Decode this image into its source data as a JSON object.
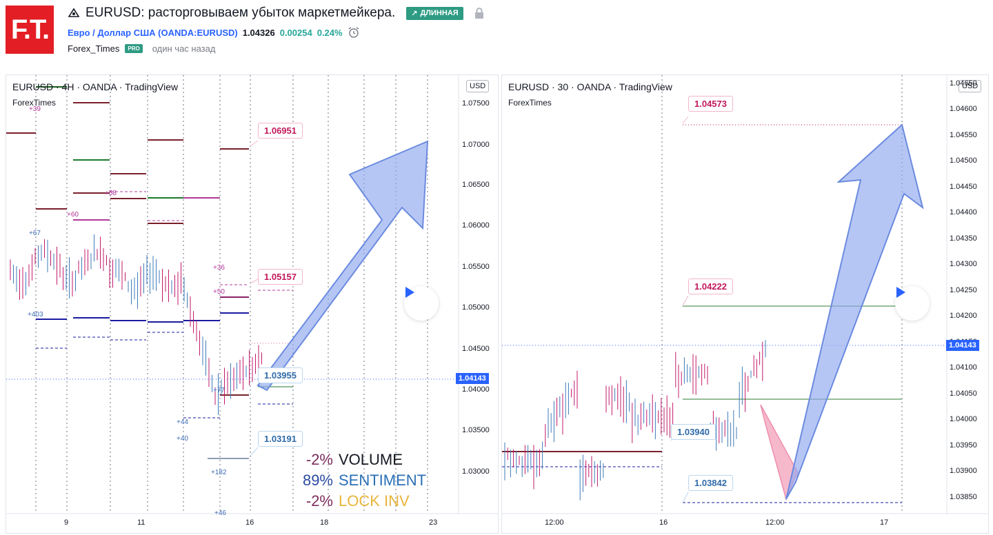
{
  "header": {
    "logo_text": "F.T.",
    "idea_title": "EURUSD: расторговываем убыток маркетмейкера.",
    "direction_badge": "ДЛИННАЯ",
    "symbol_name": "Евро / Доллар США (OANDA:EURUSD)",
    "price": "1.04326",
    "change": "0.00254",
    "change_pct": "0.24%",
    "author": "Forex_Times",
    "author_badge": "PRO",
    "time_ago": "один час назад"
  },
  "left_chart": {
    "legend": "EURUSD · 4H · OANDA · TradingView",
    "sub": "ForexTimes",
    "currency_btn": "USD",
    "price_axis": [
      "1.07500",
      "1.07000",
      "1.06500",
      "1.06000",
      "1.05500",
      "1.05000",
      "1.04500",
      "1.04000",
      "1.03500",
      "1.03000"
    ],
    "time_axis": [
      "9",
      "11",
      "16",
      "18",
      "23"
    ],
    "current_price_tag": "1.04143",
    "callouts": [
      "1.06951",
      "1.05157",
      "1.03955",
      "1.03191"
    ],
    "volume_labels": [
      "+39",
      "+60",
      "+58",
      "+67",
      "+403",
      "+36",
      "+50",
      "+77",
      "+44",
      "+40",
      "+182",
      "+46"
    ],
    "stats": [
      {
        "pct": "-2%",
        "label": "VOLUME"
      },
      {
        "pct": "89%",
        "label": "SENTIMENT"
      },
      {
        "pct": "-2%",
        "label": "LOCK INV"
      }
    ]
  },
  "right_chart": {
    "legend": "EURUSD · 30 · OANDA · TradingView",
    "sub": "ForexTimes",
    "currency_btn": "USD",
    "price_axis": [
      "1.04650",
      "1.04600",
      "1.04550",
      "1.04500",
      "1.04450",
      "1.04400",
      "1.04350",
      "1.04300",
      "1.04250",
      "1.04200",
      "1.04150",
      "1.04100",
      "1.04050",
      "1.04000",
      "1.03950",
      "1.03900",
      "1.03850"
    ],
    "time_axis": [
      "12:00",
      "16",
      "12:00",
      "17"
    ],
    "current_price_tag": "1.04143",
    "callouts": [
      "1.04573",
      "1.04222",
      "1.03940",
      "1.03842"
    ]
  },
  "colors": {
    "long_badge": "#2e9b83",
    "up": "#26a69a",
    "logo": "#e31e24",
    "arrow_blue": "#8fa8ee",
    "arrow_pink": "#f4a7bf",
    "volume_color": "#7b2d5b",
    "sentiment_color": "#2a6fb6",
    "lockinv_color": "#e8b53a"
  }
}
